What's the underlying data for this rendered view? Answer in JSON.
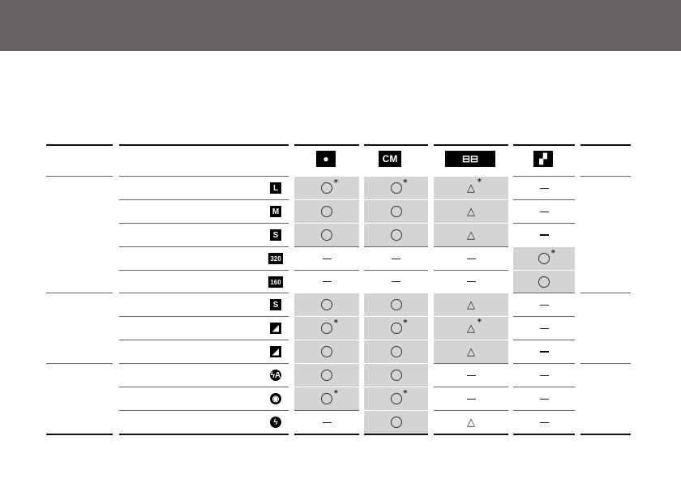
{
  "header_icons": [
    {
      "name": "camera-auto-icon",
      "glyph": "●"
    },
    {
      "name": "camera-manual-icon",
      "glyph": "CM"
    },
    {
      "name": "stitch-assist-icon",
      "glyph": "⊟⊟"
    },
    {
      "name": "movie-icon",
      "glyph": "▞"
    }
  ],
  "rows": [
    {
      "icon": "large-resolution-icon",
      "glyph": "L",
      "cells": [
        "○*",
        "○*",
        "△*",
        "–"
      ]
    },
    {
      "icon": "medium-resolution-icon",
      "glyph": "M",
      "cells": [
        "○",
        "○",
        "△",
        "–"
      ]
    },
    {
      "icon": "small-resolution-icon",
      "glyph": "S",
      "cells": [
        "○",
        "○",
        "△",
        "—"
      ]
    },
    {
      "icon": "movie-320-icon",
      "glyph": "320",
      "cells": [
        "–",
        "–",
        "–",
        "○*"
      ]
    },
    {
      "icon": "movie-160-icon",
      "glyph": "160",
      "cells": [
        "–",
        "–",
        "–",
        "○"
      ]
    },
    {
      "icon": "superfine-icon",
      "glyph": "S",
      "cells": [
        "○",
        "○",
        "△",
        "–"
      ]
    },
    {
      "icon": "fine-icon",
      "glyph": "◢",
      "cells": [
        "○*",
        "○*",
        "△*",
        "–"
      ]
    },
    {
      "icon": "normal-icon",
      "glyph": "◢",
      "cells": [
        "○",
        "○",
        "△",
        "—"
      ]
    },
    {
      "icon": "flash-auto-icon",
      "glyph": "ϟA",
      "cells": [
        "○",
        "○",
        "–",
        "–"
      ]
    },
    {
      "icon": "red-eye-icon",
      "glyph": "◉",
      "cells": [
        "○*",
        "○*",
        "–",
        "–"
      ]
    },
    {
      "icon": "flash-on-icon",
      "glyph": "ϟ",
      "cells": [
        "–",
        "○",
        "△",
        "–"
      ]
    }
  ],
  "gray": [
    [
      1,
      1,
      1,
      0
    ],
    [
      1,
      1,
      1,
      0
    ],
    [
      1,
      1,
      1,
      0
    ],
    [
      0,
      0,
      0,
      1
    ],
    [
      0,
      0,
      0,
      1
    ],
    [
      1,
      1,
      1,
      0
    ],
    [
      1,
      1,
      1,
      0
    ],
    [
      1,
      1,
      1,
      0
    ],
    [
      1,
      1,
      0,
      0
    ],
    [
      1,
      1,
      0,
      0
    ],
    [
      0,
      1,
      0,
      0
    ]
  ]
}
